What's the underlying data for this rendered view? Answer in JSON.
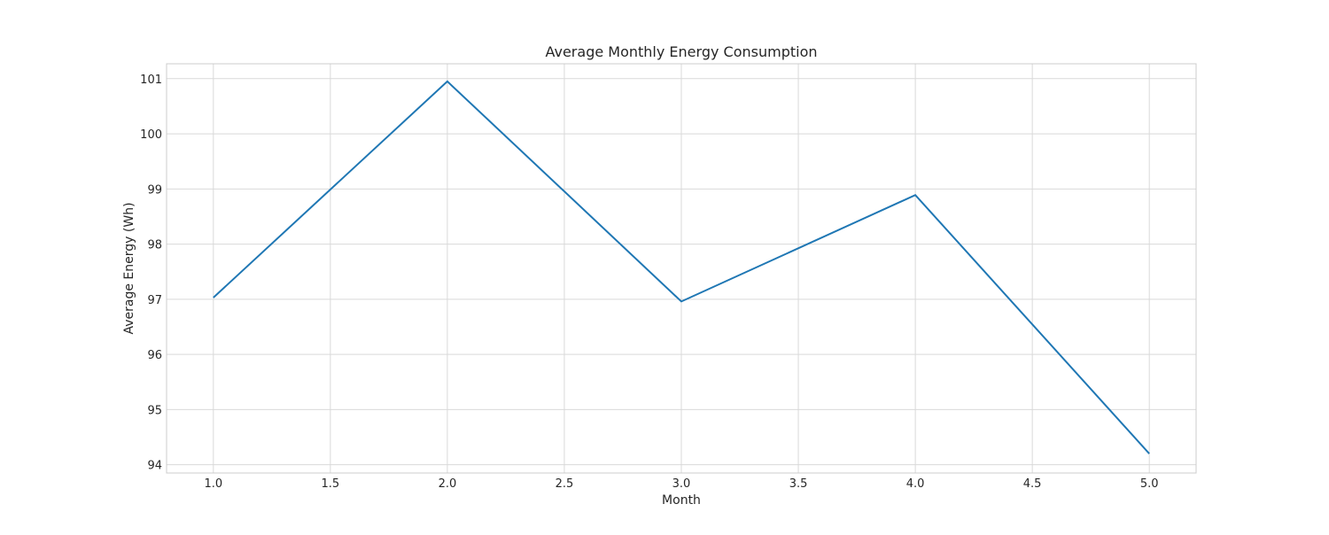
{
  "chart_data": {
    "type": "line",
    "title": "Average Monthly Energy Consumption",
    "xlabel": "Month",
    "ylabel": "Average Energy (Wh)",
    "x": [
      1,
      2,
      3,
      4,
      5
    ],
    "series": [
      {
        "values": [
          97.03,
          100.95,
          96.96,
          98.89,
          94.2
        ],
        "color": "#1f77b4"
      }
    ],
    "xlim": [
      0.8,
      5.2
    ],
    "ylim": [
      93.85,
      101.27
    ],
    "x_ticks": [
      1.0,
      1.5,
      2.0,
      2.5,
      3.0,
      3.5,
      4.0,
      4.5,
      5.0
    ],
    "x_tick_labels": [
      "1.0",
      "1.5",
      "2.0",
      "2.5",
      "3.0",
      "3.5",
      "4.0",
      "4.5",
      "5.0"
    ],
    "y_ticks": [
      94,
      95,
      96,
      97,
      98,
      99,
      100,
      101
    ],
    "y_tick_labels": [
      "94",
      "95",
      "96",
      "97",
      "98",
      "99",
      "100",
      "101"
    ],
    "grid": true,
    "legend": "none",
    "colors": {
      "grid": "#d9d9d9",
      "axes_edge": "#cccccc",
      "line": "#1f77b4"
    }
  }
}
